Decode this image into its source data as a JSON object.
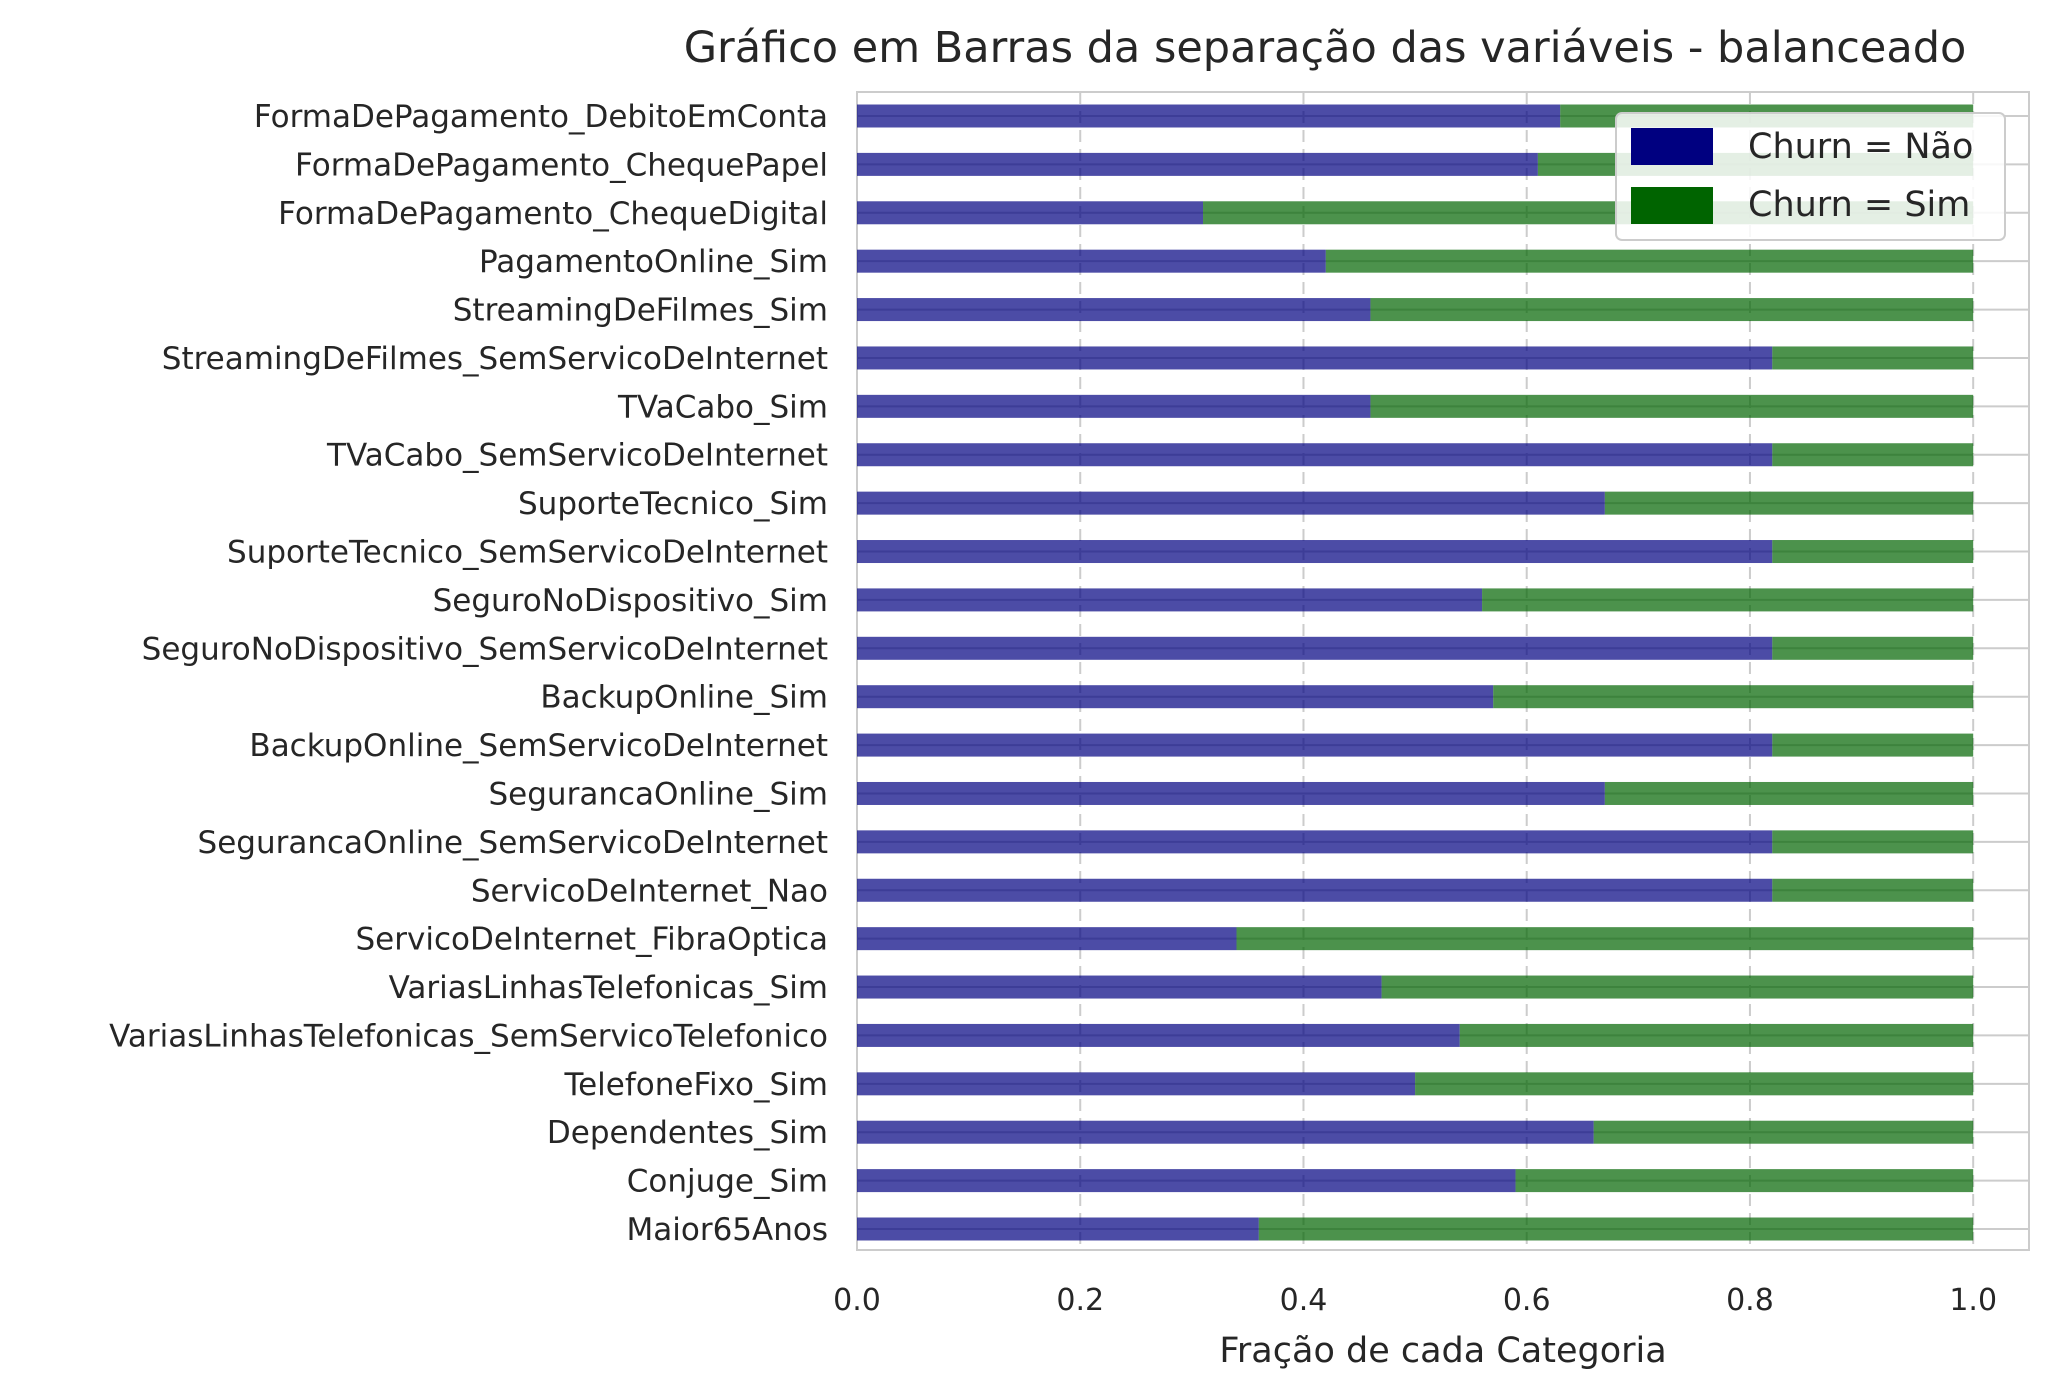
{
  "chart_data": {
    "type": "bar",
    "orientation": "horizontal",
    "stacked": true,
    "title": "Gráfico em Barras da separação das variáveis - balanceado",
    "xlabel": "Fração de cada Categoria",
    "ylabel": "",
    "xlim": [
      0,
      1.05
    ],
    "xticks": [
      "0.0",
      "0.2",
      "0.4",
      "0.6",
      "0.8",
      "1.0"
    ],
    "xtick_values": [
      0,
      0.2,
      0.4,
      0.6,
      0.8,
      1.0
    ],
    "grid": true,
    "legend_position": "top-right",
    "categories": [
      "FormaDePagamento_DebitoEmConta",
      "FormaDePagamento_ChequePapel",
      "FormaDePagamento_ChequeDigital",
      "PagamentoOnline_Sim",
      "StreamingDeFilmes_Sim",
      "StreamingDeFilmes_SemServicoDeInternet",
      "TVaCabo_Sim",
      "TVaCabo_SemServicoDeInternet",
      "SuporteTecnico_Sim",
      "SuporteTecnico_SemServicoDeInternet",
      "SeguroNoDispositivo_Sim",
      "SeguroNoDispositivo_SemServicoDeInternet",
      "BackupOnline_Sim",
      "BackupOnline_SemServicoDeInternet",
      "SegurancaOnline_Sim",
      "SegurancaOnline_SemServicoDeInternet",
      "ServicoDeInternet_Nao",
      "ServicoDeInternet_FibraOptica",
      "VariasLinhasTelefonicas_Sim",
      "VariasLinhasTelefonicas_SemServicoTelefonico",
      "TelefoneFixo_Sim",
      "Dependentes_Sim",
      "Conjuge_Sim",
      "Maior65Anos"
    ],
    "series": [
      {
        "name": "Churn = Não",
        "color": "#000080",
        "values": [
          0.63,
          0.61,
          0.31,
          0.42,
          0.46,
          0.82,
          0.46,
          0.82,
          0.67,
          0.82,
          0.56,
          0.82,
          0.57,
          0.82,
          0.67,
          0.82,
          0.82,
          0.34,
          0.47,
          0.54,
          0.5,
          0.66,
          0.59,
          0.36
        ]
      },
      {
        "name": "Churn = Sim",
        "color": "#006400",
        "values": [
          0.37,
          0.39,
          0.69,
          0.58,
          0.54,
          0.18,
          0.54,
          0.18,
          0.33,
          0.18,
          0.44,
          0.18,
          0.43,
          0.18,
          0.33,
          0.18,
          0.18,
          0.66,
          0.53,
          0.46,
          0.5,
          0.34,
          0.41,
          0.64
        ]
      }
    ]
  }
}
